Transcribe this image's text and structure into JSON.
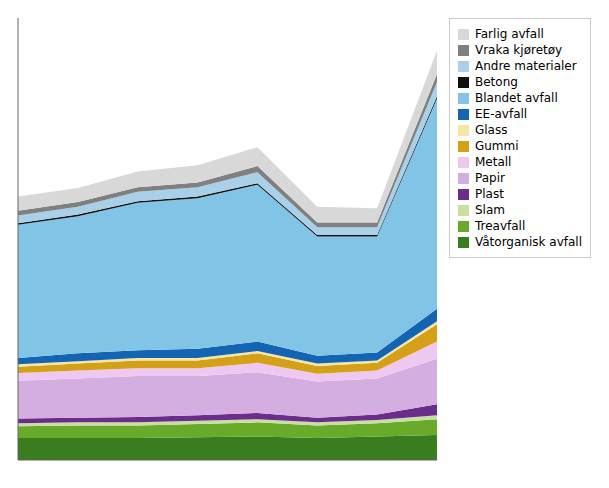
{
  "chart_data": {
    "type": "area",
    "stacked": true,
    "x": [
      0,
      1,
      2,
      3,
      4,
      5,
      6,
      7
    ],
    "xlim": [
      0,
      7
    ],
    "xticks": [
      0,
      1,
      2,
      3,
      4,
      5,
      6,
      7
    ],
    "ylim": [
      0,
      563.76
    ],
    "tick_labels": false,
    "grid": false,
    "legend": "right",
    "series": [
      {
        "name": "Våtorganisk avfall",
        "color": "#3a7d1e",
        "values": [
          28,
          28,
          28,
          29,
          30,
          28,
          30,
          32
        ]
      },
      {
        "name": "Treavfall",
        "color": "#6aaa2a",
        "values": [
          15,
          16,
          16,
          17,
          18,
          16,
          17,
          20
        ]
      },
      {
        "name": "Slam",
        "color": "#c8dfa0",
        "values": [
          4,
          4,
          4,
          4,
          4,
          4,
          4,
          5
        ]
      },
      {
        "name": "Plast",
        "color": "#6b2d8b",
        "values": [
          6,
          6,
          7,
          7,
          8,
          6,
          7,
          14
        ]
      },
      {
        "name": "Papir",
        "color": "#d4aee0",
        "values": [
          48,
          50,
          52,
          50,
          52,
          46,
          46,
          58
        ]
      },
      {
        "name": "Metall",
        "color": "#eec8f0",
        "values": [
          10,
          10,
          10,
          10,
          12,
          10,
          10,
          22
        ]
      },
      {
        "name": "Gummi",
        "color": "#d4a017",
        "values": [
          8,
          9,
          10,
          10,
          12,
          10,
          10,
          22
        ]
      },
      {
        "name": "Glass",
        "color": "#f5e6a3",
        "values": [
          3,
          3,
          3,
          3,
          3,
          3,
          3,
          4
        ]
      },
      {
        "name": "EE-avfall",
        "color": "#1464b4",
        "values": [
          8,
          10,
          10,
          12,
          12,
          10,
          10,
          16
        ]
      },
      {
        "name": "Blandet avfall",
        "color": "#82c4e6",
        "values": [
          170,
          175,
          188,
          192,
          200,
          152,
          148,
          268
        ]
      },
      {
        "name": "Betong",
        "color": "#101010",
        "values": [
          2,
          2,
          2,
          2,
          2,
          2,
          2,
          3
        ]
      },
      {
        "name": "Andre materialer",
        "color": "#a8d0e8",
        "values": [
          10,
          10,
          12,
          12,
          14,
          10,
          10,
          18
        ]
      },
      {
        "name": "Vraka kjøretøy",
        "color": "#808080",
        "values": [
          6,
          6,
          6,
          6,
          8,
          6,
          6,
          10
        ]
      },
      {
        "name": "Farlig avfall",
        "color": "#d8d8d8",
        "values": [
          18,
          18,
          20,
          22,
          24,
          20,
          18,
          30
        ]
      }
    ]
  }
}
